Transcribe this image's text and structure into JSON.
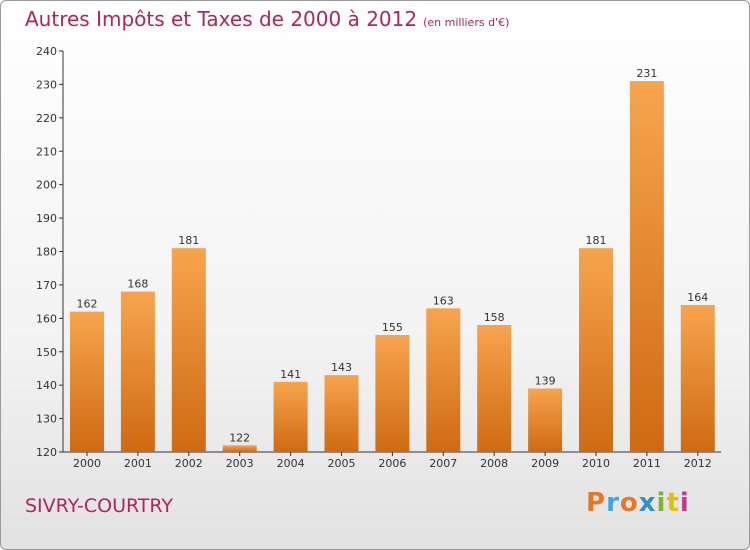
{
  "header": {
    "title": "Autres Impôts et Taxes de 2000 à 2012",
    "unit": "(en milliers d'€)"
  },
  "footer": {
    "town": "SIVRY-COURTRY",
    "logo_text": "Proxiti",
    "logo_colors": [
      "#e87722",
      "#3fa6dd",
      "#e87722",
      "#2f8fcf",
      "#7ab531",
      "#e2c200",
      "#c43b8e"
    ]
  },
  "colors": {
    "bar_light": "#f7a44e",
    "bar_dark": "#cf6a12",
    "text": "#b0255e"
  },
  "chart_data": {
    "type": "bar",
    "title": "Autres Impôts et Taxes de 2000 à 2012",
    "subtitle": "(en milliers d'€)",
    "categories": [
      "2000",
      "2001",
      "2002",
      "2003",
      "2004",
      "2005",
      "2006",
      "2007",
      "2008",
      "2009",
      "2010",
      "2011",
      "2012"
    ],
    "values": [
      162,
      168,
      181,
      122,
      141,
      143,
      155,
      163,
      158,
      139,
      181,
      231,
      164
    ],
    "ylim": [
      120,
      240
    ],
    "yticks": [
      120,
      130,
      140,
      150,
      160,
      170,
      180,
      190,
      200,
      210,
      220,
      230,
      240
    ],
    "grid": false,
    "data_labels": true
  }
}
